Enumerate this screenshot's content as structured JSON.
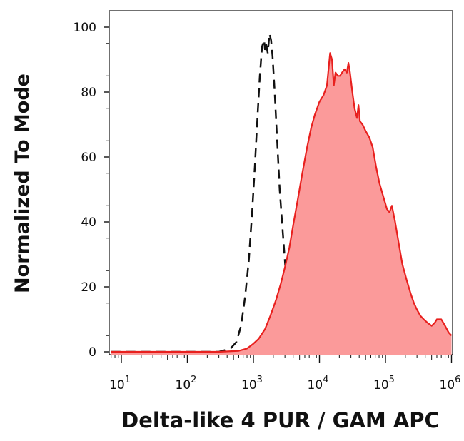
{
  "chart_data": {
    "type": "area",
    "xlabel": "Delta-like 4 PUR / GAM APC",
    "ylabel": "Normalized To Mode",
    "x_scale": "log",
    "xlim": [
      5,
      1000000
    ],
    "ylim": [
      0,
      105
    ],
    "x_ticks": [
      {
        "base": "10",
        "exp": "1",
        "value": 10
      },
      {
        "base": "10",
        "exp": "2",
        "value": 100
      },
      {
        "base": "10",
        "exp": "3",
        "value": 1000
      },
      {
        "base": "10",
        "exp": "4",
        "value": 10000
      },
      {
        "base": "10",
        "exp": "5",
        "value": 100000
      },
      {
        "base": "10",
        "exp": "6",
        "value": 1000000
      }
    ],
    "y_ticks": [
      "0",
      "20",
      "40",
      "60",
      "80",
      "100"
    ],
    "series": [
      {
        "style": "dashed-line",
        "color": "#111111",
        "points": [
          [
            7,
            0
          ],
          [
            100,
            0
          ],
          [
            300,
            0
          ],
          [
            450,
            1
          ],
          [
            550,
            3
          ],
          [
            650,
            8
          ],
          [
            750,
            17
          ],
          [
            850,
            28
          ],
          [
            950,
            42
          ],
          [
            1050,
            57
          ],
          [
            1150,
            72
          ],
          [
            1250,
            85
          ],
          [
            1350,
            94
          ],
          [
            1450,
            96
          ],
          [
            1500,
            93
          ],
          [
            1550,
            95
          ],
          [
            1650,
            92
          ],
          [
            1750,
            98
          ],
          [
            1850,
            96
          ],
          [
            1950,
            91
          ],
          [
            2100,
            80
          ],
          [
            2300,
            64
          ],
          [
            2500,
            50
          ],
          [
            2800,
            36
          ],
          [
            3100,
            24
          ],
          [
            3500,
            15
          ],
          [
            4000,
            8
          ],
          [
            5000,
            3
          ],
          [
            6500,
            1
          ],
          [
            8000,
            0.5
          ],
          [
            12000,
            0
          ],
          [
            1000000,
            0
          ]
        ]
      },
      {
        "style": "filled-area",
        "color": "#e8201e",
        "fill": "#fb9a9a",
        "points": [
          [
            7,
            0
          ],
          [
            300,
            0
          ],
          [
            600,
            0.3
          ],
          [
            800,
            1
          ],
          [
            1000,
            2.5
          ],
          [
            1200,
            4
          ],
          [
            1500,
            7
          ],
          [
            1800,
            11
          ],
          [
            2200,
            16
          ],
          [
            2600,
            21
          ],
          [
            3000,
            26
          ],
          [
            3500,
            32
          ],
          [
            4000,
            39
          ],
          [
            4700,
            47
          ],
          [
            5500,
            55
          ],
          [
            6500,
            63
          ],
          [
            7500,
            69
          ],
          [
            8500,
            73
          ],
          [
            10000,
            77
          ],
          [
            11500,
            79
          ],
          [
            13000,
            82
          ],
          [
            14500,
            92
          ],
          [
            15500,
            90
          ],
          [
            16500,
            82
          ],
          [
            17500,
            86
          ],
          [
            19000,
            85
          ],
          [
            20500,
            85
          ],
          [
            22000,
            86
          ],
          [
            24000,
            87
          ],
          [
            26000,
            86
          ],
          [
            27500,
            89
          ],
          [
            29000,
            86
          ],
          [
            31500,
            80
          ],
          [
            34000,
            75
          ],
          [
            37000,
            72
          ],
          [
            39000,
            76
          ],
          [
            41000,
            71
          ],
          [
            45000,
            70
          ],
          [
            50000,
            68
          ],
          [
            57000,
            66
          ],
          [
            64000,
            63
          ],
          [
            72000,
            57
          ],
          [
            81000,
            52
          ],
          [
            92000,
            48
          ],
          [
            105000,
            44
          ],
          [
            115000,
            43
          ],
          [
            125000,
            45
          ],
          [
            140000,
            40
          ],
          [
            160000,
            33
          ],
          [
            180000,
            27
          ],
          [
            210000,
            22
          ],
          [
            240000,
            18
          ],
          [
            270000,
            15
          ],
          [
            300000,
            13
          ],
          [
            340000,
            11
          ],
          [
            380000,
            10
          ],
          [
            430000,
            9
          ],
          [
            500000,
            8
          ],
          [
            560000,
            9
          ],
          [
            600000,
            10
          ],
          [
            700000,
            10
          ],
          [
            800000,
            8
          ],
          [
            900000,
            6
          ],
          [
            1000000,
            5
          ]
        ]
      }
    ]
  }
}
